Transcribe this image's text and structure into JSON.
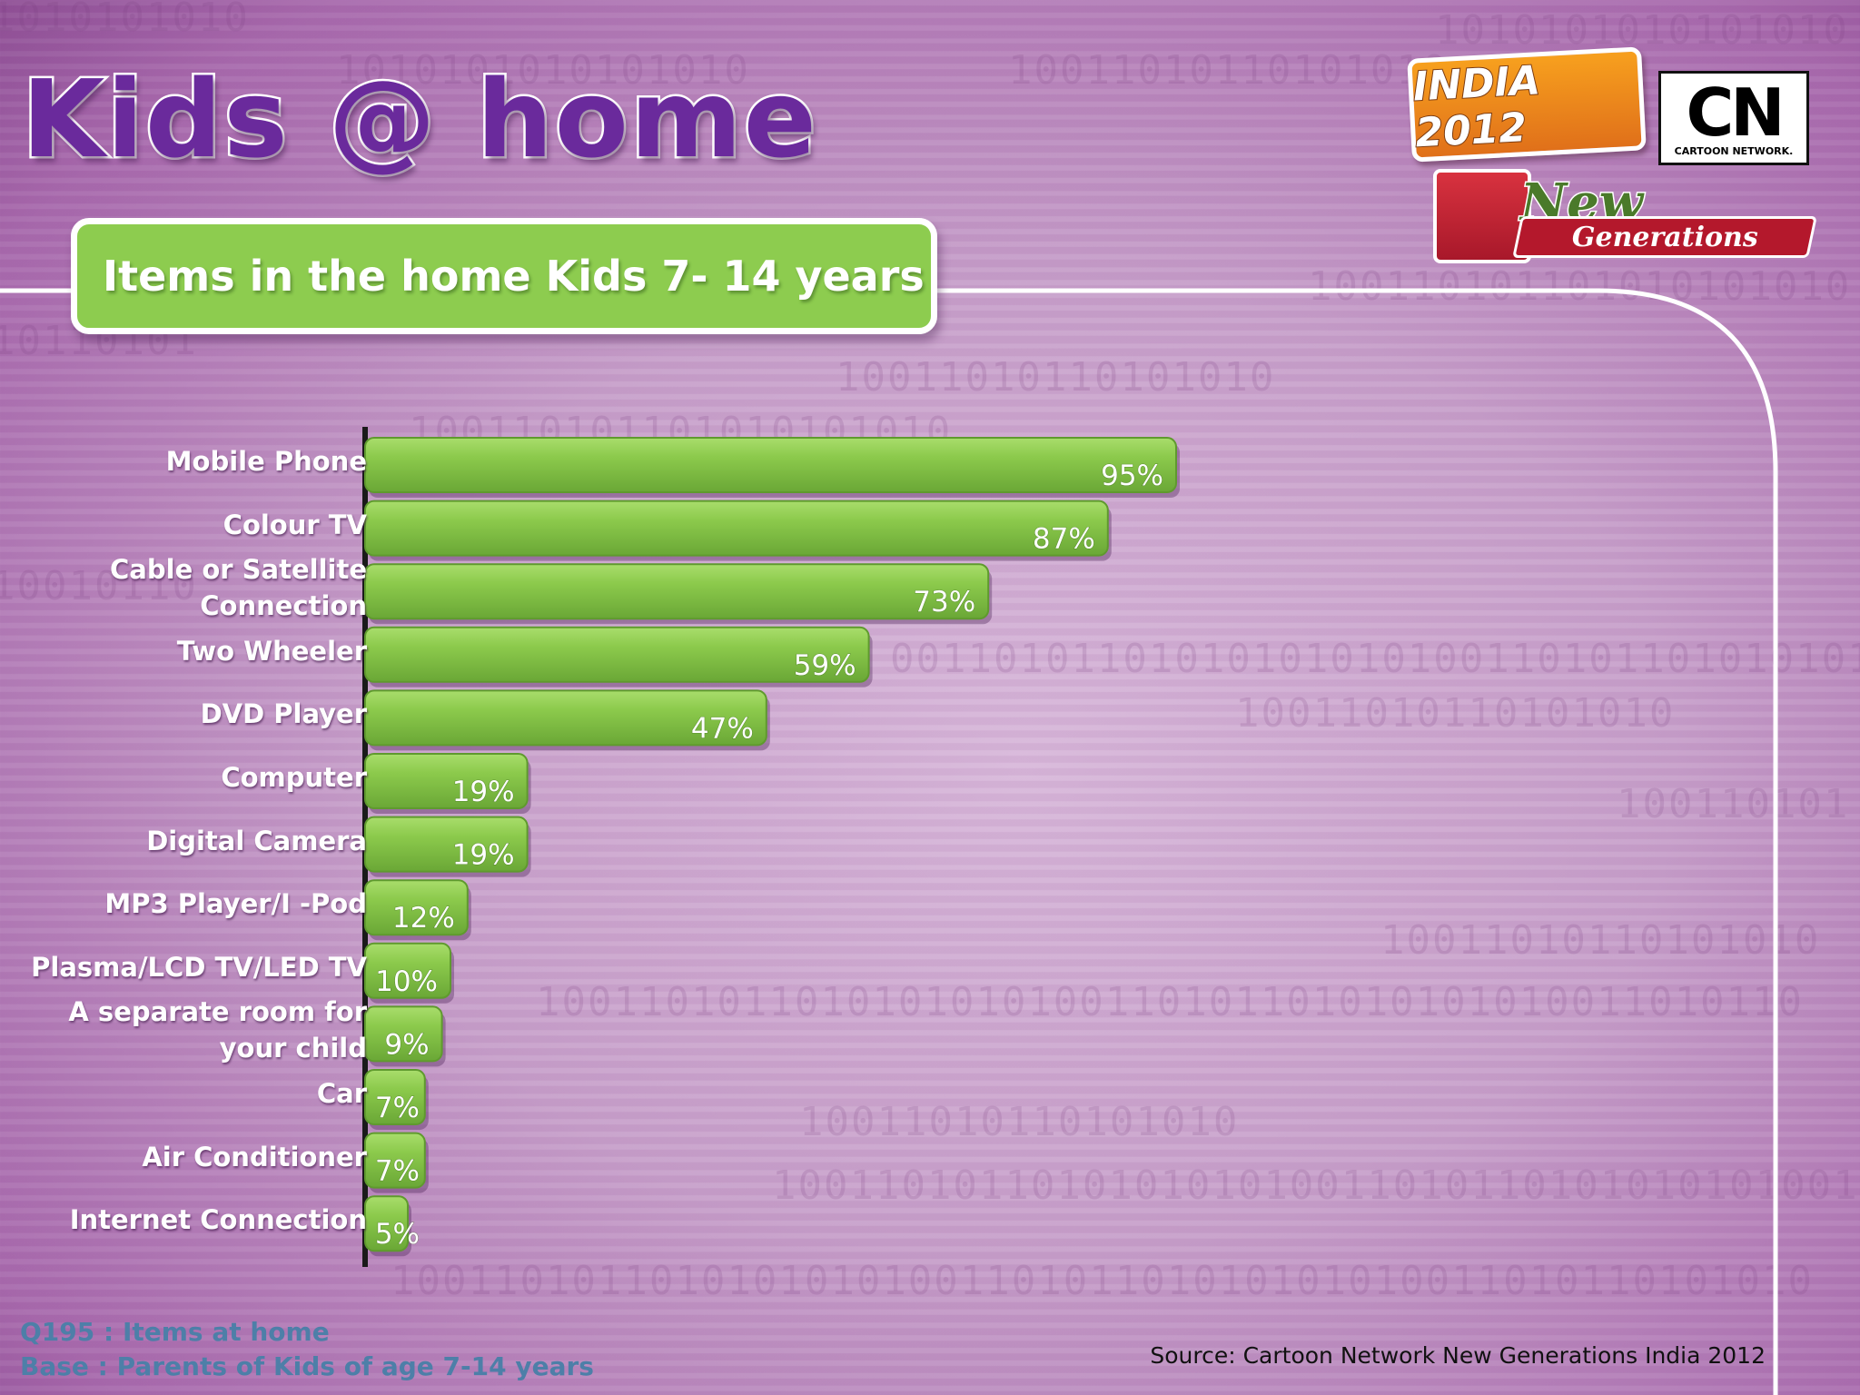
{
  "page": {
    "title": "Kids @ home",
    "subtitle": "Items in the home Kids 7- 14 years",
    "footnotes": [
      "Q195 : Items at home",
      "Base : Parents of Kids of age 7-14 years"
    ],
    "source": "Source: Cartoon Network New Generations India 2012"
  },
  "logos": {
    "india": "INDIA 2012",
    "cn_mark": "CN",
    "cn_sub": "CARTOON NETWORK.",
    "new": "New",
    "generations": "Generations"
  },
  "colors": {
    "bar": "#8cca4c",
    "bar_top": "#a8dc6a",
    "bar_dark": "#5f9a2e",
    "title": "#6a2a9c",
    "subtitle_box": "#8dcc4f",
    "footnote": "#4d7fa8"
  },
  "chart_data": {
    "type": "bar",
    "orientation": "horizontal",
    "categories": [
      "Mobile Phone",
      "Colour TV",
      "Cable or Satellite Connection",
      "Two Wheeler",
      "DVD Player",
      "Computer",
      "Digital Camera",
      "MP3 Player/I -Pod",
      "Plasma/LCD TV/LED TV",
      "A separate room for your child",
      "Car",
      "Air Conditioner",
      "Internet Connection"
    ],
    "values": [
      95,
      87,
      73,
      59,
      47,
      19,
      19,
      12,
      10,
      9,
      7,
      7,
      5
    ],
    "value_labels": [
      "95%",
      "87%",
      "73%",
      "59%",
      "47%",
      "19%",
      "19%",
      "12%",
      "10%",
      "9%",
      "7%",
      "7%",
      "5%"
    ],
    "unit": "%",
    "xlim": [
      0,
      100
    ],
    "grid": false,
    "legend": "none"
  }
}
